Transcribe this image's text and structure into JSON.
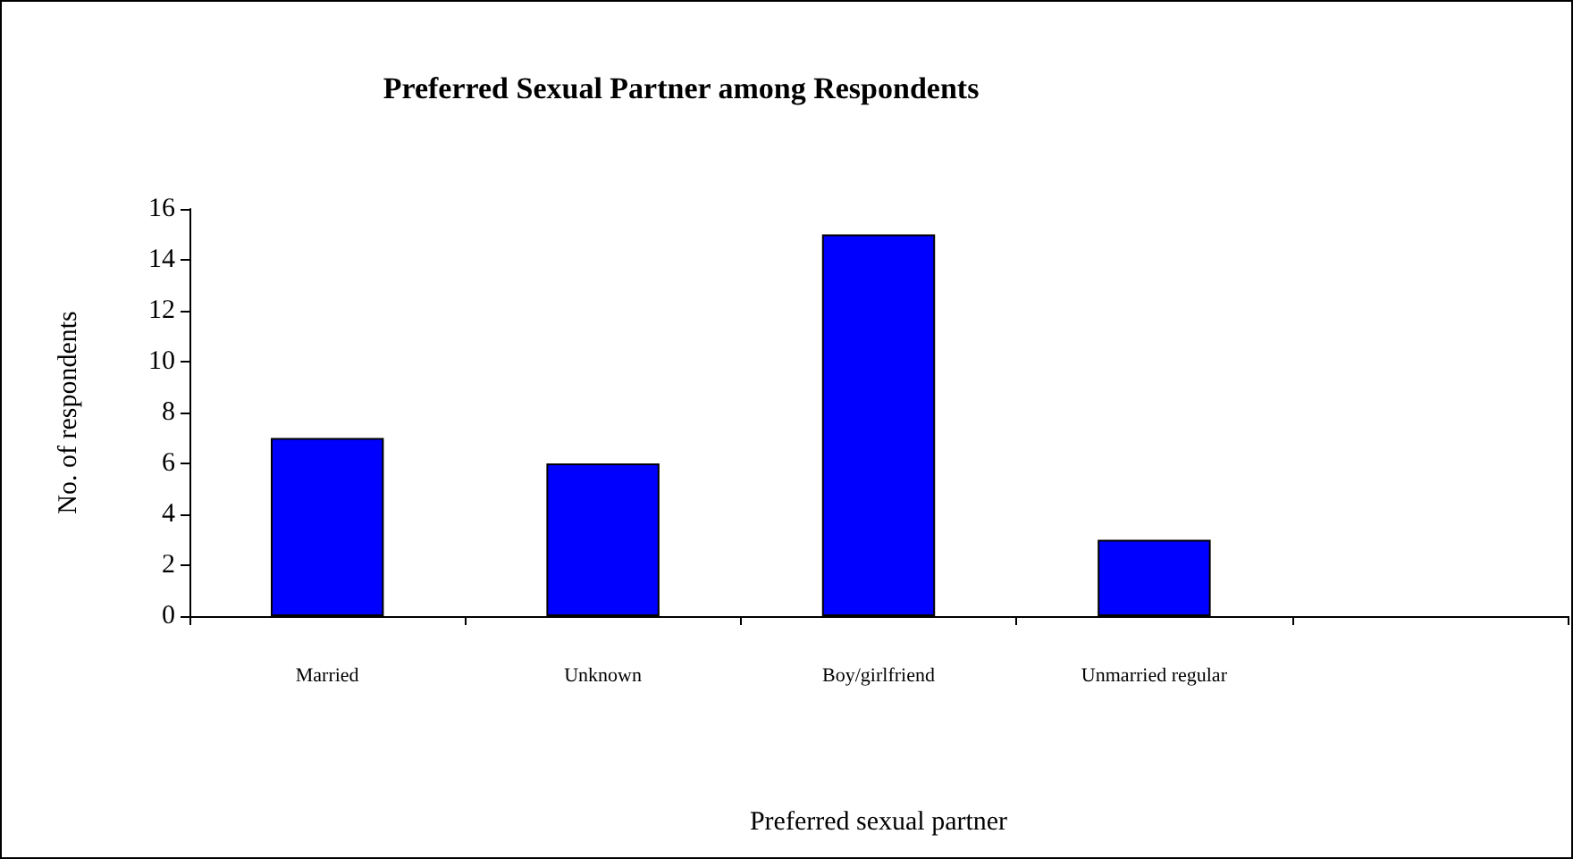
{
  "chart_data": {
    "type": "bar",
    "title": "Preferred Sexual Partner among Respondents",
    "xlabel": "Preferred sexual partner",
    "ylabel": "No. of respondents",
    "categories": [
      "Married",
      "Unknown",
      "Boy/girlfriend",
      "Unmarried regular",
      null
    ],
    "values": [
      7,
      6,
      15,
      3,
      null
    ],
    "color": "#0000ff",
    "ylim": [
      0,
      16
    ],
    "yticks": [
      0,
      2,
      4,
      6,
      8,
      10,
      12,
      14,
      16
    ]
  }
}
